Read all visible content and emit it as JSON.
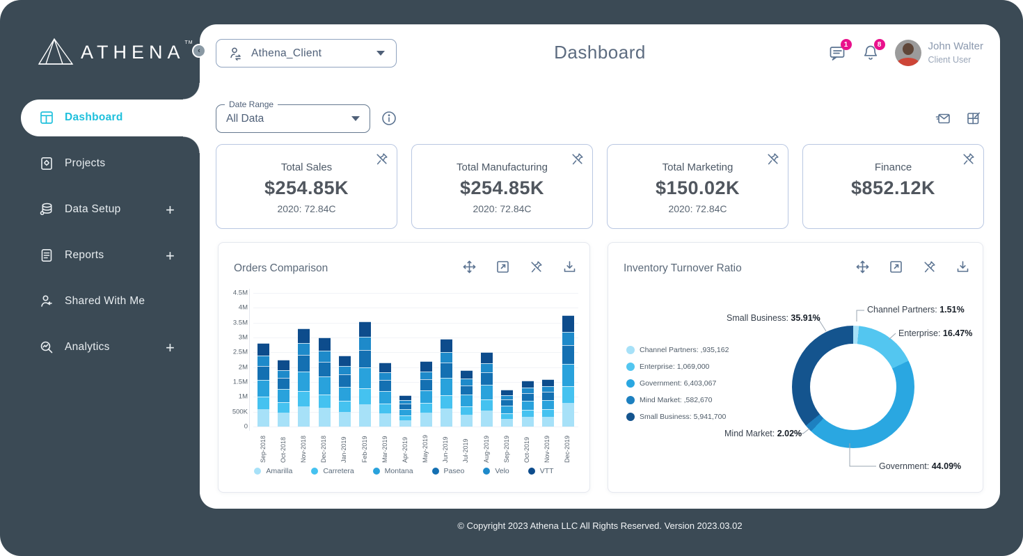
{
  "brand": {
    "name": "ATHENA",
    "tm": "TM"
  },
  "sidebar": {
    "items": [
      {
        "label": "Dashboard",
        "icon": "dashboard-icon",
        "active": true,
        "expandable": false
      },
      {
        "label": "Projects",
        "icon": "projects-icon",
        "active": false,
        "expandable": false
      },
      {
        "label": "Data Setup",
        "icon": "data-setup-icon",
        "active": false,
        "expandable": true
      },
      {
        "label": "Reports",
        "icon": "reports-icon",
        "active": false,
        "expandable": true
      },
      {
        "label": "Shared With Me",
        "icon": "shared-with-me-icon",
        "active": false,
        "expandable": false
      },
      {
        "label": "Analytics",
        "icon": "analytics-icon",
        "active": false,
        "expandable": true
      }
    ],
    "expand_glyph": "+"
  },
  "header": {
    "client_selector": {
      "value": "Athena_Client",
      "icon": "user-switch-icon"
    },
    "title": "Dashboard",
    "messages_badge": "1",
    "notifications_badge": "8",
    "user": {
      "name": "John Walter",
      "role": "Client User"
    }
  },
  "filters": {
    "date_range_label": "Date Range",
    "date_range_value": "All Data"
  },
  "kpi_cards": [
    {
      "title": "Total Sales",
      "value": "$254.85K",
      "subtitle": "2020: 72.84C"
    },
    {
      "title": "Total Manufacturing",
      "value": "$254.85K",
      "subtitle": "2020: 72.84C"
    },
    {
      "title": "Total Marketing",
      "value": "$150.02K",
      "subtitle": "2020: 72.84C"
    },
    {
      "title": "Finance",
      "value": "$852.12K",
      "subtitle": ""
    }
  ],
  "chart_toolbar_icons": [
    "move-icon",
    "fullscreen-icon",
    "unpin-icon",
    "download-icon"
  ],
  "colors": {
    "sidebar_bg": "#3b4a55",
    "accent_cyan": "#1fc0dc",
    "badge_pink": "#e9118c",
    "icon_slate": "#5b7391",
    "kpi_card_border": "#b9c7e2"
  },
  "footer": {
    "copyright": "© Copyright 2023 Athena LLC All Rights Reserved. Version 2023.03.02"
  },
  "chart_data": [
    {
      "type": "bar",
      "stacked": true,
      "title": "Orders Comparison",
      "categories": [
        "Sep-2018",
        "Oct-2018",
        "Nov-2018",
        "Dec-2018",
        "Jan-2019",
        "Feb-2019",
        "Mar-2019",
        "Apr-2019",
        "May-2019",
        "Jun-2019",
        "Jul-2019",
        "Aug-2019",
        "Sep-2019",
        "Oct-2019",
        "Nov-2019",
        "Dec-2019"
      ],
      "series": [
        {
          "name": "Amarilla",
          "color": "#a7e1f8",
          "values": [
            0.59,
            0.47,
            0.69,
            0.63,
            0.5,
            0.75,
            0.45,
            0.22,
            0.46,
            0.62,
            0.4,
            0.53,
            0.26,
            0.33,
            0.34,
            0.79
          ]
        },
        {
          "name": "Carretera",
          "color": "#45c2f0",
          "values": [
            0.42,
            0.34,
            0.5,
            0.45,
            0.36,
            0.53,
            0.32,
            0.16,
            0.33,
            0.44,
            0.29,
            0.38,
            0.19,
            0.23,
            0.24,
            0.56
          ]
        },
        {
          "name": "Montana",
          "color": "#29a2dc",
          "values": [
            0.56,
            0.45,
            0.66,
            0.6,
            0.48,
            0.71,
            0.43,
            0.21,
            0.44,
            0.59,
            0.38,
            0.5,
            0.25,
            0.31,
            0.32,
            0.75
          ]
        },
        {
          "name": "Paseo",
          "color": "#1470b2",
          "values": [
            0.48,
            0.38,
            0.56,
            0.51,
            0.41,
            0.6,
            0.37,
            0.18,
            0.37,
            0.5,
            0.32,
            0.43,
            0.21,
            0.26,
            0.27,
            0.64
          ]
        },
        {
          "name": "Velo",
          "color": "#1e8aca",
          "values": [
            0.34,
            0.27,
            0.4,
            0.36,
            0.29,
            0.43,
            0.26,
            0.13,
            0.26,
            0.35,
            0.23,
            0.3,
            0.15,
            0.19,
            0.19,
            0.45
          ]
        },
        {
          "name": "VTT",
          "color": "#0d4c8c",
          "values": [
            0.42,
            0.34,
            0.49,
            0.45,
            0.36,
            0.53,
            0.32,
            0.15,
            0.34,
            0.45,
            0.28,
            0.36,
            0.19,
            0.23,
            0.24,
            0.56
          ]
        }
      ],
      "values_unit": "millions",
      "ylim": [
        0,
        4.5
      ],
      "yticks": [
        "4.5M",
        "4M",
        "3.5M",
        "3M",
        "2.5M",
        "2M",
        "1.5M",
        "1M",
        "500K",
        "0"
      ],
      "grid": true,
      "legend_position": "bottom",
      "xlabel": "",
      "ylabel": ""
    },
    {
      "type": "pie",
      "subtype": "donut",
      "title": "Inventory Turnover Ratio",
      "segments": [
        {
          "name": "Channel Partners",
          "percent": 1.51,
          "legend_value": ",935,162",
          "color": "#a7e1f8"
        },
        {
          "name": "Enterprise",
          "percent": 16.47,
          "legend_value": "1,069,000",
          "color": "#53c6f0"
        },
        {
          "name": "Government",
          "percent": 44.09,
          "legend_value": "6,403,067",
          "color": "#2aa7e1"
        },
        {
          "name": "Mind Market",
          "percent": 2.02,
          "legend_value": ",582,670",
          "color": "#1d80c0"
        },
        {
          "name": "Small Business",
          "percent": 35.91,
          "legend_value": "5,941,700",
          "color": "#14548e"
        }
      ],
      "legend_position": "left"
    }
  ]
}
